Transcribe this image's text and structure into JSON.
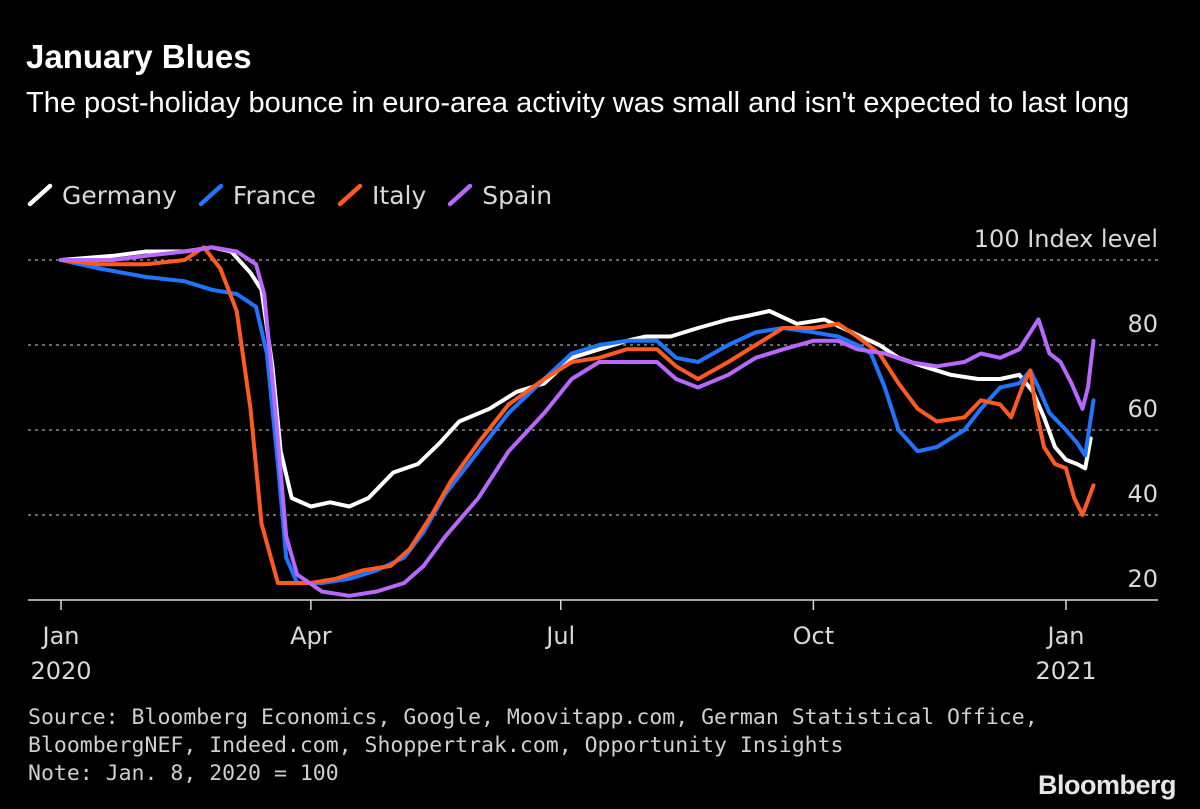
{
  "title": "January Blues",
  "subtitle": "The post-holiday bounce in euro-area activity was small and isn't expected to last long",
  "footer": {
    "source_line1": "Source: Bloomberg Economics, Google, Moovitapp.com, German Statistical Office,",
    "source_line2": "BloombergNEF, Indeed.com, Shoppertrak.com, Opportunity Insights",
    "note": "Note: Jan. 8, 2020 = 100"
  },
  "brand": "Bloomberg",
  "chart_data": {
    "type": "line",
    "title": "January Blues",
    "subtitle": "The post-holiday bounce in euro-area activity was small and isn't expected to last long",
    "ylabel": "Index level",
    "ylim": [
      18,
      103
    ],
    "yticks": [
      100,
      80,
      60,
      40,
      20
    ],
    "ytick_labels": [
      "100 Index level",
      "80",
      "60",
      "40",
      "20"
    ],
    "gridlines": [
      100,
      80,
      60,
      40
    ],
    "xlim": [
      "2020-01-01",
      "2021-01-31"
    ],
    "xticks": [
      {
        "date": "2020-01-01",
        "label": "Jan",
        "year": "2020"
      },
      {
        "date": "2020-04-01",
        "label": "Apr",
        "year": ""
      },
      {
        "date": "2020-07-01",
        "label": "Jul",
        "year": ""
      },
      {
        "date": "2020-10-01",
        "label": "Oct",
        "year": ""
      },
      {
        "date": "2021-01-01",
        "label": "Jan",
        "year": "2021"
      }
    ],
    "legend_position": "top-left",
    "series": [
      {
        "name": "Germany",
        "color": "#ffffff",
        "points": [
          [
            "2020-01-01",
            100
          ],
          [
            "2020-01-20",
            101
          ],
          [
            "2020-02-01",
            102
          ],
          [
            "2020-02-15",
            102
          ],
          [
            "2020-02-25",
            103
          ],
          [
            "2020-03-03",
            102
          ],
          [
            "2020-03-10",
            97
          ],
          [
            "2020-03-14",
            93
          ],
          [
            "2020-03-18",
            75
          ],
          [
            "2020-03-21",
            55
          ],
          [
            "2020-03-25",
            44
          ],
          [
            "2020-04-01",
            42
          ],
          [
            "2020-04-08",
            43
          ],
          [
            "2020-04-15",
            42
          ],
          [
            "2020-04-22",
            44
          ],
          [
            "2020-05-01",
            50
          ],
          [
            "2020-05-10",
            52
          ],
          [
            "2020-05-18",
            57
          ],
          [
            "2020-05-25",
            62
          ],
          [
            "2020-06-05",
            65
          ],
          [
            "2020-06-15",
            69
          ],
          [
            "2020-06-25",
            71
          ],
          [
            "2020-07-05",
            77
          ],
          [
            "2020-07-15",
            79
          ],
          [
            "2020-07-25",
            81
          ],
          [
            "2020-08-01",
            82
          ],
          [
            "2020-08-10",
            82
          ],
          [
            "2020-08-20",
            84
          ],
          [
            "2020-08-31",
            86
          ],
          [
            "2020-09-08",
            87
          ],
          [
            "2020-09-15",
            88
          ],
          [
            "2020-09-25",
            85
          ],
          [
            "2020-10-05",
            86
          ],
          [
            "2020-10-15",
            83
          ],
          [
            "2020-10-25",
            80
          ],
          [
            "2020-11-01",
            77
          ],
          [
            "2020-11-10",
            75
          ],
          [
            "2020-11-20",
            73
          ],
          [
            "2020-11-30",
            72
          ],
          [
            "2020-12-08",
            72
          ],
          [
            "2020-12-15",
            73
          ],
          [
            "2020-12-20",
            69
          ],
          [
            "2020-12-24",
            63
          ],
          [
            "2020-12-28",
            56
          ],
          [
            "2021-01-01",
            53
          ],
          [
            "2021-01-05",
            52
          ],
          [
            "2021-01-08",
            51
          ],
          [
            "2021-01-10",
            58
          ]
        ]
      },
      {
        "name": "France",
        "color": "#1f75fe",
        "points": [
          [
            "2020-01-01",
            100
          ],
          [
            "2020-01-15",
            98
          ],
          [
            "2020-02-01",
            96
          ],
          [
            "2020-02-15",
            95
          ],
          [
            "2020-02-25",
            93
          ],
          [
            "2020-03-05",
            92
          ],
          [
            "2020-03-12",
            89
          ],
          [
            "2020-03-16",
            78
          ],
          [
            "2020-03-20",
            52
          ],
          [
            "2020-03-23",
            30
          ],
          [
            "2020-03-27",
            24
          ],
          [
            "2020-04-05",
            24
          ],
          [
            "2020-04-15",
            25
          ],
          [
            "2020-04-25",
            27
          ],
          [
            "2020-05-05",
            30
          ],
          [
            "2020-05-12",
            36
          ],
          [
            "2020-05-20",
            45
          ],
          [
            "2020-06-01",
            55
          ],
          [
            "2020-06-12",
            64
          ],
          [
            "2020-06-25",
            72
          ],
          [
            "2020-07-05",
            78
          ],
          [
            "2020-07-15",
            80
          ],
          [
            "2020-07-25",
            81
          ],
          [
            "2020-08-05",
            81
          ],
          [
            "2020-08-12",
            77
          ],
          [
            "2020-08-20",
            76
          ],
          [
            "2020-08-31",
            80
          ],
          [
            "2020-09-10",
            83
          ],
          [
            "2020-09-20",
            84
          ],
          [
            "2020-10-01",
            83
          ],
          [
            "2020-10-10",
            82
          ],
          [
            "2020-10-17",
            80
          ],
          [
            "2020-10-22",
            78
          ],
          [
            "2020-10-27",
            70
          ],
          [
            "2020-11-01",
            60
          ],
          [
            "2020-11-08",
            55
          ],
          [
            "2020-11-15",
            56
          ],
          [
            "2020-11-25",
            60
          ],
          [
            "2020-12-01",
            65
          ],
          [
            "2020-12-08",
            70
          ],
          [
            "2020-12-15",
            71
          ],
          [
            "2020-12-19",
            74
          ],
          [
            "2020-12-22",
            70
          ],
          [
            "2020-12-26",
            64
          ],
          [
            "2021-01-01",
            60
          ],
          [
            "2021-01-05",
            57
          ],
          [
            "2021-01-08",
            54
          ],
          [
            "2021-01-11",
            67
          ]
        ]
      },
      {
        "name": "Italy",
        "color": "#ff5a1f",
        "points": [
          [
            "2020-01-01",
            100
          ],
          [
            "2020-01-15",
            99
          ],
          [
            "2020-02-01",
            99
          ],
          [
            "2020-02-15",
            100
          ],
          [
            "2020-02-22",
            103
          ],
          [
            "2020-02-28",
            98
          ],
          [
            "2020-03-05",
            88
          ],
          [
            "2020-03-10",
            65
          ],
          [
            "2020-03-14",
            38
          ],
          [
            "2020-03-20",
            24
          ],
          [
            "2020-04-01",
            24
          ],
          [
            "2020-04-10",
            25
          ],
          [
            "2020-04-20",
            27
          ],
          [
            "2020-04-30",
            28
          ],
          [
            "2020-05-07",
            32
          ],
          [
            "2020-05-15",
            40
          ],
          [
            "2020-05-22",
            48
          ],
          [
            "2020-06-01",
            57
          ],
          [
            "2020-06-12",
            66
          ],
          [
            "2020-06-25",
            72
          ],
          [
            "2020-07-05",
            76
          ],
          [
            "2020-07-15",
            77
          ],
          [
            "2020-07-25",
            79
          ],
          [
            "2020-08-05",
            79
          ],
          [
            "2020-08-12",
            75
          ],
          [
            "2020-08-20",
            72
          ],
          [
            "2020-08-31",
            76
          ],
          [
            "2020-09-10",
            80
          ],
          [
            "2020-09-20",
            84
          ],
          [
            "2020-10-01",
            84
          ],
          [
            "2020-10-10",
            85
          ],
          [
            "2020-10-17",
            82
          ],
          [
            "2020-10-25",
            78
          ],
          [
            "2020-11-01",
            71
          ],
          [
            "2020-11-08",
            65
          ],
          [
            "2020-11-15",
            62
          ],
          [
            "2020-11-25",
            63
          ],
          [
            "2020-12-01",
            67
          ],
          [
            "2020-12-08",
            66
          ],
          [
            "2020-12-12",
            63
          ],
          [
            "2020-12-16",
            70
          ],
          [
            "2020-12-19",
            74
          ],
          [
            "2020-12-21",
            65
          ],
          [
            "2020-12-24",
            56
          ],
          [
            "2020-12-28",
            52
          ],
          [
            "2021-01-01",
            51
          ],
          [
            "2021-01-04",
            44
          ],
          [
            "2021-01-07",
            40
          ],
          [
            "2021-01-11",
            47
          ]
        ]
      },
      {
        "name": "Spain",
        "color": "#b867ff",
        "points": [
          [
            "2020-01-01",
            100
          ],
          [
            "2020-01-20",
            100
          ],
          [
            "2020-02-01",
            101
          ],
          [
            "2020-02-15",
            102
          ],
          [
            "2020-02-25",
            103
          ],
          [
            "2020-03-05",
            102
          ],
          [
            "2020-03-12",
            99
          ],
          [
            "2020-03-15",
            92
          ],
          [
            "2020-03-19",
            65
          ],
          [
            "2020-03-23",
            35
          ],
          [
            "2020-03-27",
            26
          ],
          [
            "2020-04-05",
            22
          ],
          [
            "2020-04-15",
            21
          ],
          [
            "2020-04-25",
            22
          ],
          [
            "2020-05-05",
            24
          ],
          [
            "2020-05-12",
            28
          ],
          [
            "2020-05-20",
            35
          ],
          [
            "2020-06-01",
            44
          ],
          [
            "2020-06-12",
            55
          ],
          [
            "2020-06-25",
            64
          ],
          [
            "2020-07-05",
            72
          ],
          [
            "2020-07-15",
            76
          ],
          [
            "2020-07-25",
            76
          ],
          [
            "2020-08-05",
            76
          ],
          [
            "2020-08-12",
            72
          ],
          [
            "2020-08-20",
            70
          ],
          [
            "2020-08-31",
            73
          ],
          [
            "2020-09-10",
            77
          ],
          [
            "2020-09-20",
            79
          ],
          [
            "2020-10-01",
            81
          ],
          [
            "2020-10-10",
            81
          ],
          [
            "2020-10-17",
            79
          ],
          [
            "2020-10-27",
            78
          ],
          [
            "2020-11-05",
            76
          ],
          [
            "2020-11-15",
            75
          ],
          [
            "2020-11-25",
            76
          ],
          [
            "2020-12-01",
            78
          ],
          [
            "2020-12-08",
            77
          ],
          [
            "2020-12-15",
            79
          ],
          [
            "2020-12-19",
            83
          ],
          [
            "2020-12-22",
            86
          ],
          [
            "2020-12-26",
            78
          ],
          [
            "2020-12-30",
            76
          ],
          [
            "2021-01-03",
            71
          ],
          [
            "2021-01-07",
            65
          ],
          [
            "2021-01-09",
            70
          ],
          [
            "2021-01-11",
            81
          ]
        ]
      }
    ]
  }
}
